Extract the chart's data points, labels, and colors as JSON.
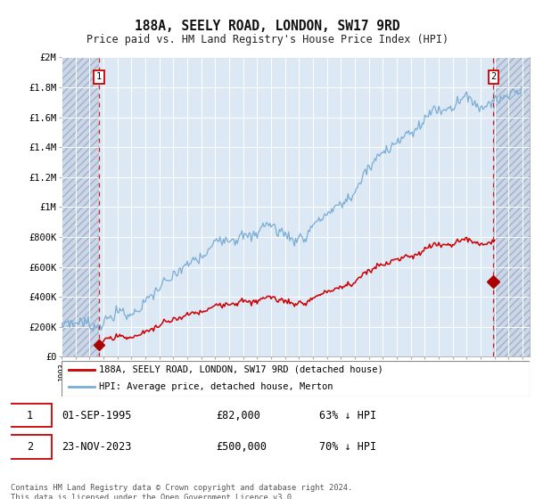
{
  "title": "188A, SEELY ROAD, LONDON, SW17 9RD",
  "subtitle": "Price paid vs. HM Land Registry's House Price Index (HPI)",
  "legend_line1": "188A, SEELY ROAD, LONDON, SW17 9RD (detached house)",
  "legend_line2": "HPI: Average price, detached house, Merton",
  "annotation1_date": "01-SEP-1995",
  "annotation1_price": "£82,000",
  "annotation1_hpi": "63% ↓ HPI",
  "annotation2_date": "23-NOV-2023",
  "annotation2_price": "£500,000",
  "annotation2_hpi": "70% ↓ HPI",
  "footer": "Contains HM Land Registry data © Crown copyright and database right 2024.\nThis data is licensed under the Open Government Licence v3.0.",
  "xmin": 1993.0,
  "xmax": 2026.5,
  "ymin": 0,
  "ymax": 2000000,
  "sale1_x": 1995.667,
  "sale1_y": 82000,
  "sale2_x": 2023.9,
  "sale2_y": 500000,
  "bg_color": "#ffffff",
  "plot_bg_color": "#dde8f5",
  "red_line_color": "#cc0000",
  "blue_line_color": "#7aadd4",
  "marker_color": "#aa0000",
  "dashed_line_color": "#cc0000",
  "yticks": [
    0,
    200000,
    400000,
    600000,
    800000,
    1000000,
    1200000,
    1400000,
    1600000,
    1800000,
    2000000
  ],
  "ytick_labels": [
    "£0",
    "£200K",
    "£400K",
    "£600K",
    "£800K",
    "£1M",
    "£1.2M",
    "£1.4M",
    "£1.6M",
    "£1.8M",
    "£2M"
  ]
}
